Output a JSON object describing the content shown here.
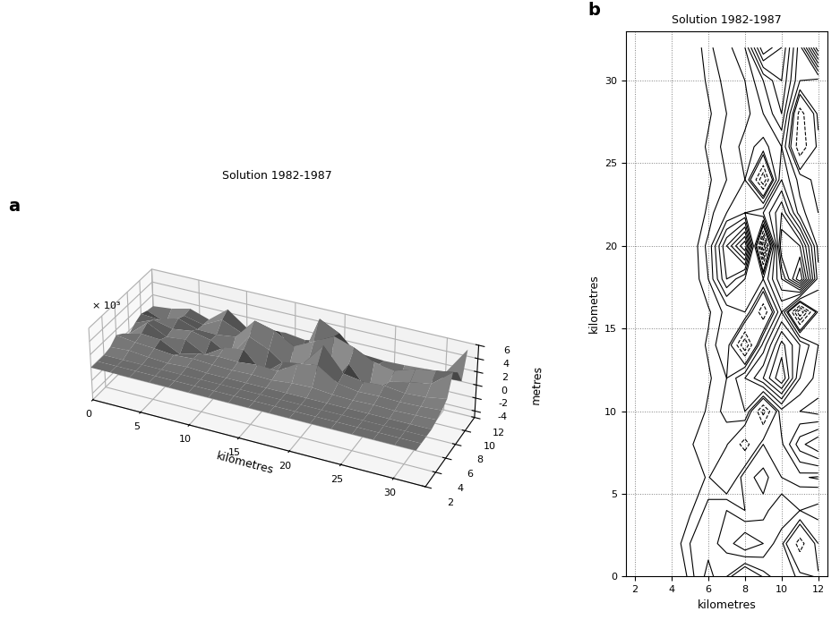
{
  "chart_data": [
    {
      "type": "surface",
      "panel": "a",
      "title": "Solution 1982-1987",
      "x_label": "kilometres",
      "z_label": "metres",
      "z_multiplier": "× 10³",
      "color": "#8c8c8c",
      "grid": true,
      "x": [
        0,
        2,
        4,
        6,
        8,
        10,
        12,
        14,
        16,
        18,
        20,
        22,
        24,
        26,
        28,
        30,
        32
      ],
      "y": [
        2,
        3,
        4,
        5,
        6,
        7,
        8,
        9,
        10,
        11,
        12
      ],
      "z": [
        [
          0,
          0,
          0,
          0.3,
          1.2,
          0.5,
          -0.5,
          0.3,
          0.8,
          0.4,
          0.2
        ],
        [
          0,
          0,
          0,
          0.5,
          0.8,
          1.2,
          2.0,
          1.5,
          0.6,
          -0.8,
          0.5
        ],
        [
          0,
          0,
          0,
          0.2,
          0.6,
          1.0,
          0.5,
          0.8,
          1.5,
          1.0,
          1.2
        ],
        [
          0,
          0,
          0,
          0,
          0.3,
          -0.5,
          0.8,
          1.2,
          0.5,
          0.3,
          0.2
        ],
        [
          0,
          0,
          0,
          0.2,
          0.5,
          0.3,
          -0.8,
          0.5,
          0.4,
          1.8,
          2.5
        ],
        [
          0,
          0,
          0,
          0,
          0.3,
          0.6,
          1.0,
          -1.2,
          0.8,
          0.5,
          0.3
        ],
        [
          0,
          0,
          0,
          0,
          0.2,
          0.5,
          1.5,
          2.5,
          4.0,
          1.5,
          0.8
        ],
        [
          0,
          0,
          0,
          0,
          0.3,
          0.8,
          -1.5,
          1.2,
          3.2,
          2.0,
          1.0
        ],
        [
          0,
          0,
          0,
          0,
          0.2,
          0.6,
          1.0,
          -1.0,
          1.5,
          -2.0,
          0.6
        ],
        [
          0,
          0,
          0,
          0,
          0.5,
          2.5,
          1.5,
          1.0,
          3.0,
          5.5,
          1.2
        ],
        [
          0,
          0,
          0,
          0,
          0.6,
          3.0,
          5.0,
          -2.5,
          4.5,
          4.0,
          0.8
        ],
        [
          0,
          0,
          0,
          0,
          0.3,
          1.0,
          1.5,
          2.0,
          3.5,
          1.2,
          0.5
        ],
        [
          0,
          0,
          0,
          0,
          0.2,
          0.5,
          1.0,
          -1.5,
          2.0,
          0.8,
          0.3
        ],
        [
          0,
          0,
          0,
          0,
          0.3,
          0.6,
          1.2,
          0.8,
          1.5,
          -1.0,
          0.4
        ],
        [
          0,
          0,
          0,
          0,
          0.2,
          0.5,
          0.8,
          1.5,
          2.5,
          -0.8,
          0.6
        ],
        [
          0,
          0,
          0,
          0,
          0.3,
          0.6,
          1.0,
          2.0,
          3.0,
          1.0,
          0.8
        ],
        [
          0,
          0,
          0,
          0,
          0.4,
          0.8,
          1.5,
          4.5,
          3.5,
          1.2,
          5.0
        ]
      ],
      "xlim": [
        0,
        33
      ],
      "xticks": [
        0,
        5,
        10,
        15,
        20,
        25,
        30
      ],
      "ylim": [
        2,
        12
      ],
      "yticks": [
        2,
        4,
        6,
        8,
        10,
        12
      ],
      "zlim": [
        -5,
        6
      ],
      "zticks": [
        -4,
        -2,
        0,
        2,
        4,
        6
      ]
    },
    {
      "type": "contour",
      "panel": "b",
      "title": "Solution 1982-1987",
      "x_label": "kilometres",
      "y_label": "kilometres",
      "color": "#000000",
      "grid": true,
      "x": [
        2,
        3,
        4,
        5,
        6,
        7,
        8,
        9,
        10,
        11,
        12
      ],
      "y": [
        0,
        2,
        4,
        6,
        8,
        10,
        12,
        14,
        16,
        18,
        20,
        22,
        24,
        26,
        28,
        30,
        32
      ],
      "z": [
        [
          0,
          0,
          0,
          0.3,
          1.2,
          0.5,
          -0.5,
          0.3,
          0.8,
          0.4,
          0.2
        ],
        [
          0,
          0,
          0,
          0.5,
          0.8,
          1.2,
          2.0,
          1.5,
          0.6,
          -0.8,
          0.5
        ],
        [
          0,
          0,
          0,
          0.2,
          0.6,
          1.0,
          0.5,
          0.8,
          1.5,
          1.0,
          1.2
        ],
        [
          0,
          0,
          0,
          0,
          0.3,
          -0.5,
          0.8,
          1.2,
          0.5,
          0.3,
          0.2
        ],
        [
          0,
          0,
          0,
          0.2,
          0.5,
          0.3,
          -0.8,
          0.5,
          0.4,
          1.8,
          2.5
        ],
        [
          0,
          0,
          0,
          0,
          0.3,
          0.6,
          1.0,
          -1.2,
          0.8,
          0.5,
          0.3
        ],
        [
          0,
          0,
          0,
          0,
          0.2,
          0.5,
          1.5,
          2.5,
          4.0,
          1.5,
          0.8
        ],
        [
          0,
          0,
          0,
          0,
          0.3,
          0.8,
          -1.5,
          1.2,
          3.2,
          2.0,
          1.0
        ],
        [
          0,
          0,
          0,
          0,
          0.2,
          0.6,
          1.0,
          -1.0,
          1.5,
          -2.0,
          0.6
        ],
        [
          0,
          0,
          0,
          0,
          0.5,
          2.5,
          1.5,
          1.0,
          3.0,
          5.5,
          1.2
        ],
        [
          0,
          0,
          0,
          0,
          0.6,
          3.0,
          5.0,
          -2.5,
          4.5,
          4.0,
          0.8
        ],
        [
          0,
          0,
          0,
          0,
          0.3,
          1.0,
          1.5,
          2.0,
          3.5,
          1.2,
          0.5
        ],
        [
          0,
          0,
          0,
          0,
          0.2,
          0.5,
          1.0,
          -1.5,
          2.0,
          0.8,
          0.3
        ],
        [
          0,
          0,
          0,
          0,
          0.3,
          0.6,
          1.2,
          0.8,
          1.5,
          -1.0,
          0.4
        ],
        [
          0,
          0,
          0,
          0,
          0.2,
          0.5,
          0.8,
          1.5,
          2.5,
          -0.8,
          0.6
        ],
        [
          0,
          0,
          0,
          0,
          0.3,
          0.6,
          1.0,
          2.0,
          3.0,
          1.0,
          0.8
        ],
        [
          0,
          0,
          0,
          0,
          0.4,
          0.8,
          1.5,
          4.5,
          3.5,
          1.2,
          5.0
        ]
      ],
      "contour_levels": [
        -3,
        -2.5,
        -2,
        -1.5,
        -1,
        -0.5,
        0.25,
        0.5,
        1,
        1.5,
        2,
        2.5,
        3,
        3.5,
        4,
        4.5,
        5,
        5.5
      ],
      "xlim": [
        1.5,
        12.5
      ],
      "xticks": [
        2,
        4,
        6,
        8,
        10,
        12
      ],
      "ylim": [
        0,
        33
      ],
      "yticks": [
        0,
        5,
        10,
        15,
        20,
        25,
        30
      ]
    }
  ]
}
